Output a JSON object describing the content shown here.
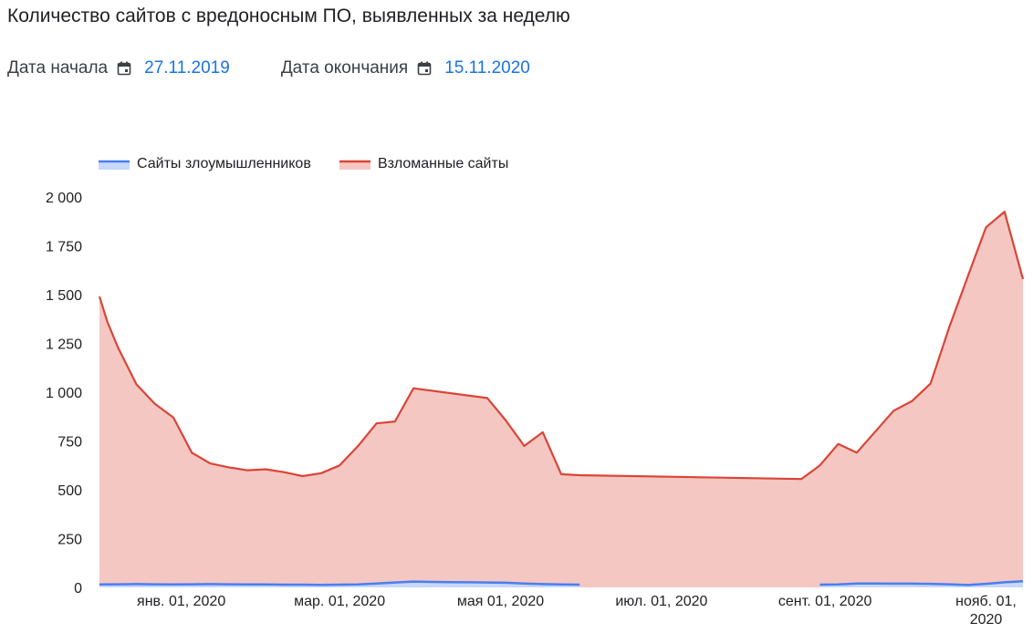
{
  "title": "Количество сайтов с вредоносным ПО, выявленных за неделю",
  "filters": {
    "start_label": "Дата начала",
    "start_value": "27.11.2019",
    "end_label": "Дата окончания",
    "end_value": "15.11.2020",
    "icon": "calendar-icon"
  },
  "colors": {
    "attack_line": "#4a7ef0",
    "attack_fill": "#c6d8fb",
    "compromised_line": "#db4437",
    "compromised_fill": "#f4c7c3",
    "text": "#202124",
    "link": "#1a73e8"
  },
  "chart_data": {
    "type": "area",
    "title": "",
    "xlabel": "",
    "ylabel": "",
    "grid": false,
    "legend_position": "top-left",
    "ylim": [
      0,
      2000
    ],
    "y_ticks": [
      {
        "value": 0,
        "label": "0"
      },
      {
        "value": 250,
        "label": "250"
      },
      {
        "value": 500,
        "label": "500"
      },
      {
        "value": 750,
        "label": "750"
      },
      {
        "value": 1000,
        "label": "1 000"
      },
      {
        "value": 1250,
        "label": "1 250"
      },
      {
        "value": 1500,
        "label": "1 500"
      },
      {
        "value": 1750,
        "label": "1 750"
      },
      {
        "value": 2000,
        "label": "2 000"
      }
    ],
    "xlim": [
      "2019-12-01",
      "2020-11-15"
    ],
    "x_ticks": [
      {
        "date": "2020-01-01",
        "lines": [
          "янв. 01, 2020"
        ]
      },
      {
        "date": "2020-03-01",
        "lines": [
          "мар. 01, 2020"
        ]
      },
      {
        "date": "2020-05-01",
        "lines": [
          "мая 01, 2020"
        ]
      },
      {
        "date": "2020-07-01",
        "lines": [
          "июл. 01, 2020"
        ]
      },
      {
        "date": "2020-09-01",
        "lines": [
          "сент. 01, 2020"
        ]
      },
      {
        "date": "2020-11-01",
        "lines": [
          "нояб. 01,",
          "2020"
        ]
      }
    ],
    "series": [
      {
        "name": "Сайты злоумышленников",
        "key": "attack",
        "segments": [
          {
            "x": [
              "2019-12-01",
              "2019-12-08",
              "2019-12-15",
              "2019-12-22",
              "2019-12-29",
              "2020-01-05",
              "2020-01-12",
              "2020-01-19",
              "2020-01-26",
              "2020-02-02",
              "2020-02-09",
              "2020-02-16",
              "2020-02-23",
              "2020-03-01",
              "2020-03-08",
              "2020-03-15",
              "2020-03-22",
              "2020-03-29",
              "2020-04-05",
              "2020-04-12",
              "2020-04-19",
              "2020-04-26",
              "2020-05-03",
              "2020-05-10",
              "2020-05-17",
              "2020-05-24",
              "2020-05-31"
            ],
            "y": [
              15,
              16,
              17,
              16,
              15,
              16,
              17,
              16,
              15,
              15,
              14,
              14,
              13,
              14,
              15,
              20,
              25,
              30,
              28,
              27,
              26,
              25,
              24,
              20,
              17,
              15,
              14
            ]
          },
          {
            "x": [
              "2020-08-30",
              "2020-09-06",
              "2020-09-13",
              "2020-09-20",
              "2020-09-27",
              "2020-10-04",
              "2020-10-11",
              "2020-10-18",
              "2020-10-25",
              "2020-11-01",
              "2020-11-08",
              "2020-11-15"
            ],
            "y": [
              14,
              15,
              20,
              20,
              19,
              19,
              18,
              16,
              12,
              18,
              26,
              32
            ]
          }
        ]
      },
      {
        "name": "Взломанные сайты",
        "key": "compromised",
        "segments": [
          {
            "x": [
              "2019-12-01",
              "2019-12-04",
              "2019-12-08",
              "2019-12-15",
              "2019-12-22",
              "2019-12-29",
              "2020-01-05",
              "2020-01-12",
              "2020-01-19",
              "2020-01-26",
              "2020-02-02",
              "2020-02-09",
              "2020-02-16",
              "2020-02-23",
              "2020-03-01",
              "2020-03-08",
              "2020-03-15",
              "2020-03-22",
              "2020-03-29",
              "2020-04-26",
              "2020-05-03",
              "2020-05-10",
              "2020-05-17",
              "2020-05-24",
              "2020-05-31",
              "2020-08-23",
              "2020-08-30",
              "2020-09-06",
              "2020-09-13",
              "2020-09-27",
              "2020-10-04",
              "2020-10-11",
              "2020-10-18",
              "2020-10-25",
              "2020-11-01",
              "2020-11-08",
              "2020-11-15"
            ],
            "y": [
              1490,
              1360,
              1230,
              1040,
              940,
              870,
              690,
              635,
              615,
              600,
              605,
              590,
              570,
              585,
              625,
              725,
              840,
              850,
              1020,
              970,
              855,
              725,
              795,
              580,
              575,
              555,
              625,
              735,
              690,
              905,
              955,
              1045,
              1330,
              1590,
              1845,
              1925,
              1580
            ]
          }
        ]
      }
    ]
  }
}
